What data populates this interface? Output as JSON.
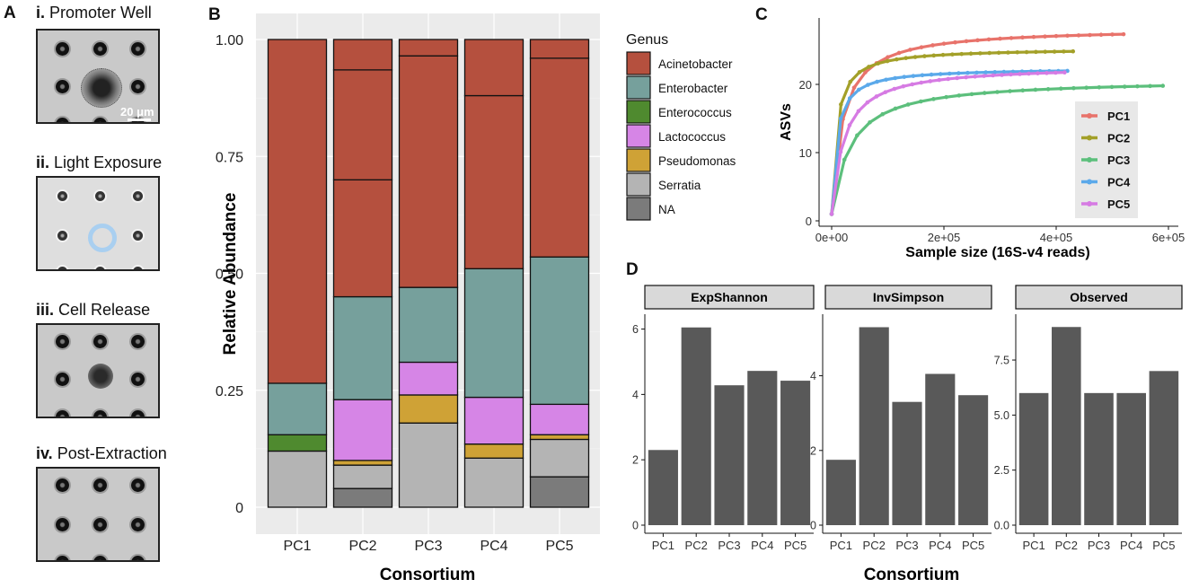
{
  "panel_labels": {
    "a": "A",
    "b": "B",
    "c": "C",
    "d": "D"
  },
  "micrographs": [
    {
      "num": "i.",
      "label": "Promoter Well",
      "scalebar": "20 μm"
    },
    {
      "num": "ii.",
      "label": "Light Exposure"
    },
    {
      "num": "iii.",
      "label": "Cell Release"
    },
    {
      "num": "iv.",
      "label": "Post-Extraction"
    }
  ],
  "colors": {
    "Acinetobacter": "#b5503e",
    "Enterobacter": "#76a09c",
    "Enterococcus": "#4f8a2f",
    "Lactococcus": "#d685e6",
    "Pseudomonas": "#cfa236",
    "Serratia": "#b4b4b4",
    "NA": "#7b7b7b",
    "PC1": "#e8736b",
    "PC2": "#a3a029",
    "PC3": "#5cbf7c",
    "PC4": "#5ba9ea",
    "PC5": "#d67be3",
    "bar_dark": "#595959",
    "panel_bg": "#ebebeb",
    "strip_bg": "#d9d9d9"
  },
  "chart_data": [
    {
      "id": "B",
      "type": "bar",
      "stacked": true,
      "xlabel": "Consortium",
      "ylabel": "Relative Abundance",
      "ylim": [
        0,
        1
      ],
      "yticks": [
        "0",
        "0.25",
        "0.50",
        "0.75",
        "1.00"
      ],
      "categories": [
        "PC1",
        "PC2",
        "PC3",
        "PC4",
        "PC5"
      ],
      "legend_title": "Genus",
      "legend": [
        "Acinetobacter",
        "Enterobacter",
        "Enterococcus",
        "Lactococcus",
        "Pseudomonas",
        "Serratia",
        "NA"
      ],
      "stack_order_bottom_to_top": [
        "NA",
        "Serratia",
        "Pseudomonas",
        "Lactococcus",
        "Enterococcus",
        "Enterobacter",
        "Acinetobacter"
      ],
      "bars": {
        "PC1": [
          [
            "Serratia",
            0.12
          ],
          [
            "Enterococcus",
            0.035
          ],
          [
            "Enterobacter",
            0.11
          ],
          [
            "Acinetobacter",
            0.735
          ]
        ],
        "PC2": [
          [
            "NA",
            0.04
          ],
          [
            "Serratia",
            0.05
          ],
          [
            "Pseudomonas",
            0.01
          ],
          [
            "Lactococcus",
            0.13
          ],
          [
            "Enterobacter",
            0.22
          ],
          [
            "Acinetobacter",
            0.25
          ],
          [
            "Acinetobacter",
            0.235
          ],
          [
            "Acinetobacter",
            0.065
          ]
        ],
        "PC3": [
          [
            "Serratia",
            0.18
          ],
          [
            "Pseudomonas",
            0.06
          ],
          [
            "Lactococcus",
            0.07
          ],
          [
            "Enterobacter",
            0.16
          ],
          [
            "Acinetobacter",
            0.495
          ],
          [
            "Acinetobacter",
            0.035
          ]
        ],
        "PC4": [
          [
            "Serratia",
            0.105
          ],
          [
            "Pseudomonas",
            0.03
          ],
          [
            "Lactococcus",
            0.1
          ],
          [
            "Enterobacter",
            0.275
          ],
          [
            "Acinetobacter",
            0.37
          ],
          [
            "Acinetobacter",
            0.12
          ]
        ],
        "PC5": [
          [
            "NA",
            0.065
          ],
          [
            "Serratia",
            0.08
          ],
          [
            "Pseudomonas",
            0.01
          ],
          [
            "Lactococcus",
            0.065
          ],
          [
            "Enterobacter",
            0.315
          ],
          [
            "Acinetobacter",
            0.425
          ],
          [
            "Acinetobacter",
            0.04
          ]
        ]
      }
    },
    {
      "id": "C",
      "type": "line",
      "title": "",
      "xlabel": "Sample size (16S-v4 reads)",
      "ylabel": "ASVs",
      "xlim": [
        0,
        630000
      ],
      "ylim": [
        0,
        29
      ],
      "xticks": [
        [
          0,
          "0e+00"
        ],
        [
          200000,
          "2e+05"
        ],
        [
          400000,
          "4e+05"
        ],
        [
          600000,
          "6e+05"
        ]
      ],
      "yticks": [
        [
          0,
          "0"
        ],
        [
          10,
          "10"
        ],
        [
          20,
          "20"
        ]
      ],
      "series": [
        {
          "name": "PC1",
          "max_reads": 520000,
          "asymptote": 28.3,
          "half": 18000
        },
        {
          "name": "PC2",
          "max_reads": 430000,
          "asymptote": 25.3,
          "half": 8000
        },
        {
          "name": "PC3",
          "max_reads": 590000,
          "asymptote": 20.8,
          "half": 30000
        },
        {
          "name": "PC4",
          "max_reads": 420000,
          "asymptote": 22.4,
          "half": 8000
        },
        {
          "name": "PC5",
          "max_reads": 415000,
          "asymptote": 22.8,
          "half": 20000
        }
      ]
    },
    {
      "id": "D",
      "type": "bar",
      "xlabel": "Consortium",
      "categories": [
        "PC1",
        "PC2",
        "PC3",
        "PC4",
        "PC5"
      ],
      "facets": [
        {
          "name": "ExpShannon",
          "values": [
            2.3,
            6.05,
            4.28,
            4.72,
            4.42
          ],
          "ylim": [
            0,
            6.4
          ],
          "yticks": [
            [
              0,
              "0"
            ],
            [
              2,
              "2"
            ],
            [
              4,
              "4"
            ],
            [
              6,
              "6"
            ]
          ]
        },
        {
          "name": "InvSimpson",
          "values": [
            1.75,
            5.3,
            3.3,
            4.05,
            3.48
          ],
          "ylim": [
            0,
            5.6
          ],
          "yticks": [
            [
              0,
              "0"
            ],
            [
              2,
              "2"
            ],
            [
              4,
              "4"
            ]
          ]
        },
        {
          "name": "Observed",
          "values": [
            6,
            9,
            6,
            6,
            7
          ],
          "ylim": [
            0,
            9.5
          ],
          "yticks": [
            [
              0,
              "0.0"
            ],
            [
              2.5,
              "2.5"
            ],
            [
              5,
              "5.0"
            ],
            [
              7.5,
              "7.5"
            ]
          ]
        }
      ]
    }
  ]
}
